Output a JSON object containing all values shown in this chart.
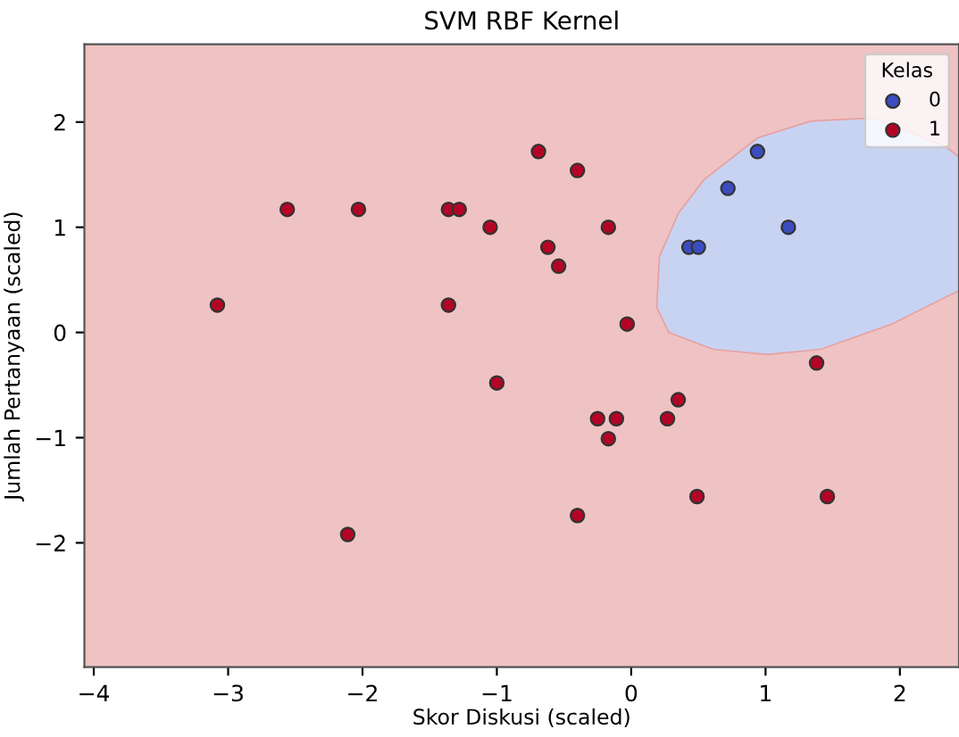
{
  "chart_data": {
    "type": "scatter",
    "title": "SVM RBF Kernel",
    "xlabel": "Skor Diskusi (scaled)",
    "ylabel": "Jumlah Pertanyaan (scaled)",
    "legend_title": "Kelas",
    "xlim": [
      -4.07,
      2.44
    ],
    "ylim": [
      -3.18,
      2.74
    ],
    "xticks": [
      {
        "value": -4,
        "label": "−4"
      },
      {
        "value": -3,
        "label": "−3"
      },
      {
        "value": -2,
        "label": "−2"
      },
      {
        "value": -1,
        "label": "−1"
      },
      0,
      1,
      2
    ],
    "yticks": [
      {
        "value": -2,
        "label": "−2"
      },
      {
        "value": -1,
        "label": "−1"
      },
      0,
      1,
      2
    ],
    "grid": false,
    "legend": "top right",
    "marker": "circle",
    "series": [
      {
        "name": "0",
        "color": "#3b4cc0",
        "x": [
          0.94,
          0.72,
          1.17,
          0.43,
          0.5
        ],
        "values": [
          1.72,
          1.37,
          1.0,
          0.81,
          0.81
        ]
      },
      {
        "name": "1",
        "color": "#b40426",
        "x": [
          -3.08,
          -2.56,
          -2.03,
          -1.36,
          -1.28,
          -1.05,
          -1.36,
          -1.0,
          -2.11,
          -0.69,
          -0.4,
          -0.62,
          -0.17,
          -0.54,
          -0.03,
          -0.25,
          -0.11,
          -0.17,
          0.35,
          0.27,
          0.49,
          -0.4,
          1.38,
          1.46
        ],
        "values": [
          0.26,
          1.17,
          1.17,
          1.17,
          1.17,
          1.0,
          0.26,
          -0.48,
          -1.92,
          1.72,
          1.54,
          0.81,
          1.0,
          0.63,
          0.08,
          -0.82,
          -0.82,
          -1.01,
          -0.64,
          -0.82,
          -1.56,
          -1.74,
          -0.29,
          -1.56
        ]
      }
    ]
  }
}
